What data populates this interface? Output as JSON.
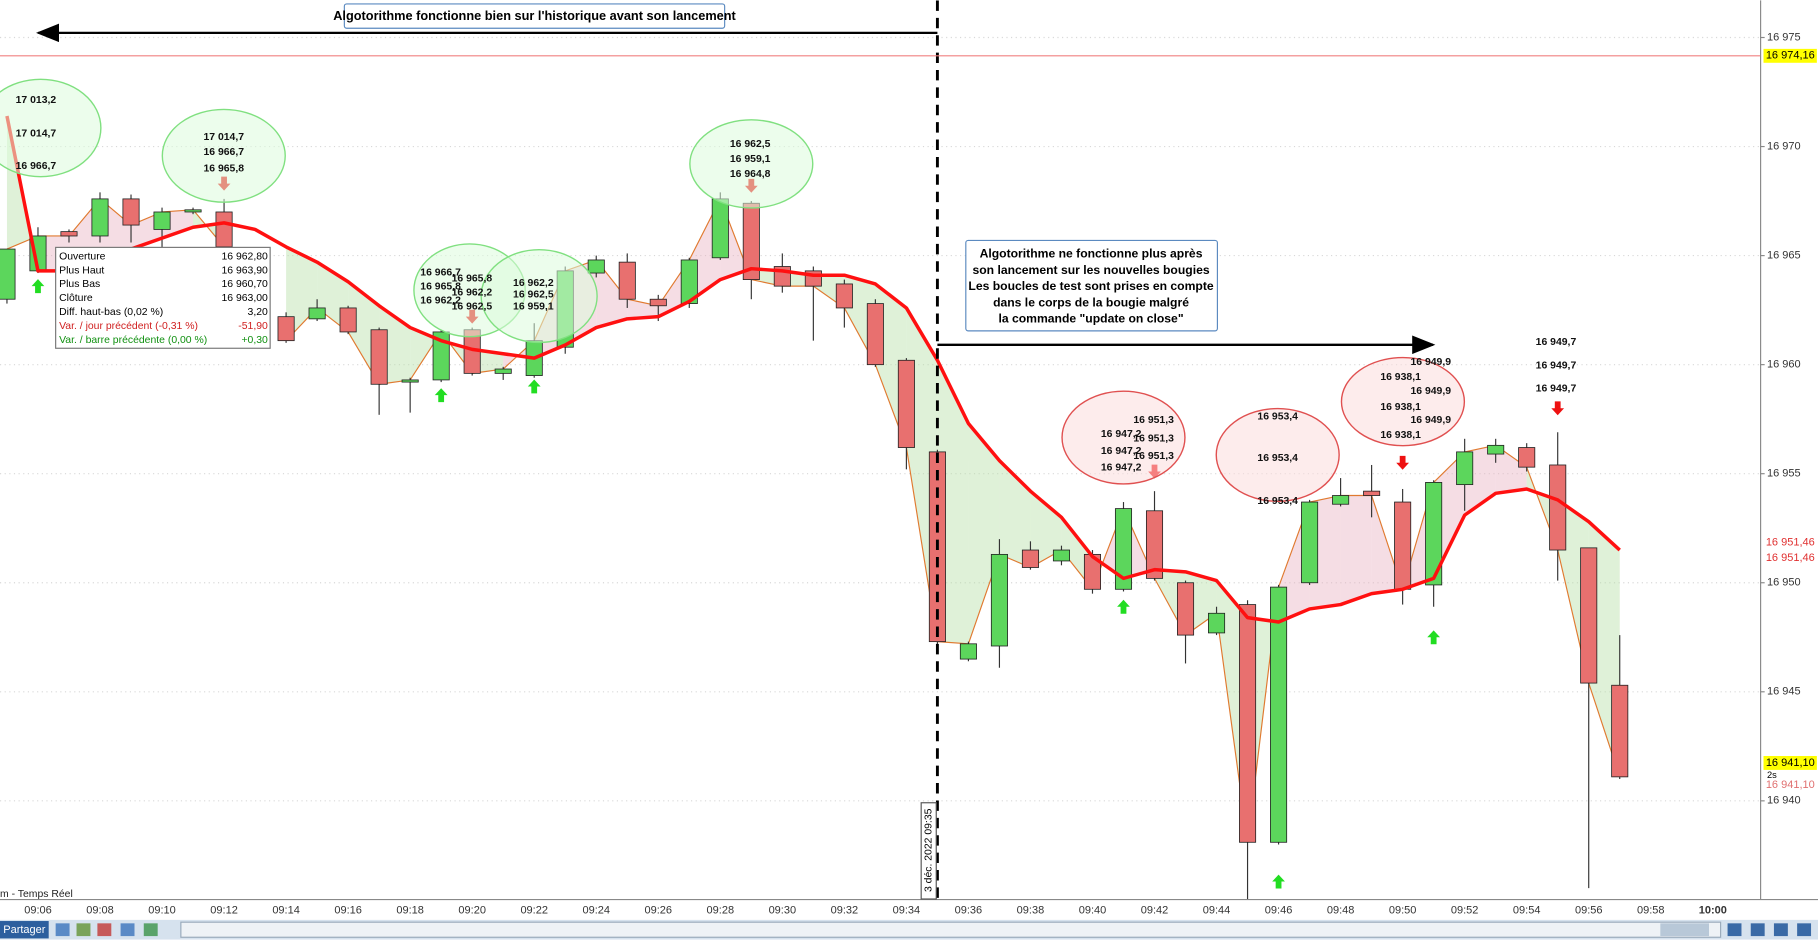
{
  "chart_data": {
    "type": "candlestick",
    "x": [
      "09:05",
      "09:06",
      "09:07",
      "09:08",
      "09:09",
      "09:10",
      "09:11",
      "09:12",
      "09:13",
      "09:14",
      "09:15",
      "09:16",
      "09:17",
      "09:18",
      "09:19",
      "09:20",
      "09:21",
      "09:22",
      "09:23",
      "09:24",
      "09:25",
      "09:26",
      "09:27",
      "09:28",
      "09:29",
      "09:30",
      "09:31",
      "09:32",
      "09:33",
      "09:34",
      "09:35",
      "09:36",
      "09:37",
      "09:38",
      "09:39",
      "09:40",
      "09:41",
      "09:42",
      "09:43",
      "09:44",
      "09:45",
      "09:46",
      "09:47",
      "09:48",
      "09:49",
      "09:50",
      "09:51",
      "09:52",
      "09:53",
      "09:54",
      "09:55",
      "09:56",
      "09:57"
    ],
    "open": [
      16963.0,
      16964.3,
      16966.1,
      16965.9,
      16967.6,
      16966.2,
      16967.0,
      16967.0,
      null,
      16962.2,
      16962.1,
      16962.6,
      16961.6,
      16959.2,
      16959.3,
      16961.6,
      16959.6,
      16959.5,
      16960.8,
      16964.2,
      16964.7,
      16963.0,
      16962.8,
      16964.9,
      16967.4,
      16964.5,
      16964.3,
      16963.7,
      16962.8,
      16960.2,
      16956.0,
      16946.5,
      16947.1,
      16951.5,
      16951.0,
      16951.3,
      16949.7,
      16953.3,
      16950.0,
      16947.7,
      16949.0,
      16938.1,
      16950.0,
      16953.6,
      16954.2,
      16953.7,
      16949.9,
      16954.5,
      16955.9,
      16956.2,
      16955.4,
      16951.6,
      16945.3
    ],
    "high": [
      16965.3,
      16966.3,
      16966.2,
      16967.9,
      16967.8,
      16967.2,
      16967.2,
      16967.6,
      null,
      16962.4,
      16963.0,
      16962.7,
      16961.7,
      16959.4,
      16961.6,
      16961.7,
      16959.9,
      16961.9,
      16964.5,
      16965.0,
      16965.1,
      16963.2,
      16964.9,
      16967.9,
      16967.5,
      16965.1,
      16964.5,
      16963.9,
      16963.0,
      16960.3,
      16956.1,
      16947.3,
      16952.0,
      16951.9,
      16951.7,
      16951.5,
      16953.7,
      16954.2,
      16950.1,
      16948.9,
      16949.2,
      16949.9,
      16953.8,
      16954.8,
      16955.4,
      16954.3,
      16954.7,
      16956.6,
      16956.6,
      16956.4,
      16956.9,
      16951.6,
      16947.6
    ],
    "low": [
      16962.8,
      16964.2,
      16965.6,
      16965.6,
      16965.6,
      16965.2,
      16966.9,
      16965.2,
      null,
      16961.0,
      16962.0,
      16961.4,
      16957.7,
      16957.8,
      16959.2,
      16959.5,
      16959.3,
      16959.4,
      16960.5,
      16964.0,
      16962.6,
      16962.0,
      16962.6,
      16964.8,
      16963.0,
      16963.3,
      16961.1,
      16961.7,
      16959.9,
      16955.2,
      16947.0,
      16946.4,
      16946.1,
      16950.6,
      16950.8,
      16949.5,
      16949.6,
      16950.1,
      16946.3,
      16947.6,
      16935.5,
      16938.0,
      16949.9,
      16953.5,
      16953.0,
      16949.0,
      16948.9,
      16953.3,
      16955.5,
      16955.1,
      16950.1,
      16936.0,
      16941.0
    ],
    "close": [
      16965.3,
      16965.9,
      16965.9,
      16967.6,
      16966.4,
      16967.0,
      16967.1,
      16965.4,
      null,
      16961.1,
      16962.6,
      16961.5,
      16959.1,
      16959.3,
      16961.5,
      16959.6,
      16959.8,
      16961.1,
      16964.3,
      16964.8,
      16963.0,
      16962.7,
      16964.8,
      16967.6,
      16963.9,
      16963.6,
      16963.6,
      16962.6,
      16960.0,
      16956.2,
      16947.3,
      16947.2,
      16951.3,
      16950.7,
      16951.5,
      16949.7,
      16953.4,
      16950.2,
      16947.6,
      16948.6,
      16938.1,
      16949.8,
      16953.7,
      16954.0,
      16954.0,
      16949.7,
      16954.6,
      16956.0,
      16956.3,
      16955.3,
      16951.5,
      16945.4,
      16941.1
    ],
    "up_color": "#5cd65c",
    "down_color": "#e8706f",
    "close_line_color": "#e07a30",
    "average": {
      "color": "#ff1010",
      "values": [
        16971.4,
        16964.3,
        16964.3,
        16964.7,
        16965.3,
        16965.8,
        16966.3,
        16966.5,
        16966.2,
        16965.4,
        16964.7,
        16963.8,
        16962.7,
        16961.7,
        16961.1,
        16960.7,
        16960.5,
        16960.3,
        16960.9,
        16961.7,
        16962.1,
        16962.2,
        16962.9,
        16963.9,
        16964.4,
        16964.3,
        16964.1,
        16964.1,
        16963.7,
        16962.6,
        16960.2,
        16957.3,
        16955.6,
        16954.2,
        16953.0,
        16951.2,
        16950.2,
        16950.6,
        16950.5,
        16950.1,
        16948.4,
        16948.2,
        16948.8,
        16949.0,
        16949.5,
        16949.7,
        16950.2,
        16953.1,
        16954.1,
        16954.3,
        16953.8,
        16952.8,
        16951.5
      ]
    },
    "fill_above_color": "#e8b4c4",
    "fill_below_color": "#b8e0a8",
    "signals_up": {
      "color": "#22dd22",
      "x": [
        "09:06",
        "09:19",
        "09:22",
        "09:41",
        "09:46",
        "09:51"
      ],
      "values": [
        16963.6,
        16958.6,
        16959.0,
        16948.9,
        16936.3,
        16947.5
      ]
    },
    "signals_down": {
      "color": "#ee1111",
      "x": [
        "09:12",
        "09:20",
        "09:29",
        "09:42",
        "09:50",
        "09:55"
      ],
      "values": [
        16968.3,
        16962.2,
        16968.2,
        16955.1,
        16955.5,
        16958.0
      ]
    },
    "ylim": [
      16935.5,
      16976.7
    ],
    "yticks": [
      {
        "value": 16940,
        "label": "16 940"
      },
      {
        "value": 16945,
        "label": "16 945"
      },
      {
        "value": 16950,
        "label": "16 950"
      },
      {
        "value": 16955,
        "label": "16 955"
      },
      {
        "value": 16960,
        "label": "16 960"
      },
      {
        "value": 16965,
        "label": "16 965"
      },
      {
        "value": 16970,
        "label": "16 970"
      },
      {
        "value": 16975,
        "label": "16 975"
      }
    ],
    "xticks": [
      "09:06",
      "09:08",
      "09:10",
      "09:12",
      "09:14",
      "09:16",
      "09:18",
      "09:20",
      "09:22",
      "09:24",
      "09:26",
      "09:28",
      "09:30",
      "09:32",
      "09:34",
      "09:36",
      "09:38",
      "09:40",
      "09:42",
      "09:44",
      "09:46",
      "09:48",
      "09:50",
      "09:52",
      "09:54",
      "09:56",
      "09:58",
      "10:00"
    ],
    "grid": true,
    "price_tags": [
      {
        "value": 16974.16,
        "label": "16 974,16",
        "background": "#ffff00",
        "color": "#000000",
        "line": true
      },
      {
        "value": 16951.46,
        "label": "16 951,46",
        "background": "#ffffff",
        "color": "#e03030"
      },
      {
        "value": 16951.46,
        "label": "16 951,46",
        "background": "#ffffff",
        "color": "#e03030"
      },
      {
        "value": 16941.1,
        "label": "16 941,10",
        "background": "#ffff00",
        "color": "#000000"
      },
      {
        "value": 16941.1,
        "label": "16 941,10",
        "background": "#ffffff",
        "color": "#e07070"
      }
    ],
    "countdown": "2s",
    "launch_marker": {
      "x": "09:35",
      "label": "3 déc. 2022 09:35"
    }
  },
  "bubbles": [
    {
      "fill": "#dcfcdc",
      "stroke": "#80e080",
      "lines": [
        "17 013,2",
        "17 014,7",
        "16 966,7"
      ]
    },
    {
      "fill": "#dcfcdc",
      "stroke": "#80e080",
      "lines": [
        "17 014,7",
        "16 966,7",
        "16 965,8"
      ]
    },
    {
      "fill": "#dcfcdc",
      "stroke": "#80e080",
      "lines": [
        "16 966,7",
        "16 965,8",
        "16 962,2"
      ]
    },
    {
      "fill": "#dcfcdc",
      "stroke": "#80e080",
      "lines": [
        "16 962,2",
        "16 962,5",
        "16 959,1"
      ]
    },
    {
      "lines": [
        "16 965,8",
        "16 962,2",
        "16 962,5"
      ]
    },
    {
      "fill": "#dcfcdc",
      "stroke": "#80e080",
      "lines": [
        "16 962,5",
        "16 959,1",
        "16 964,8"
      ]
    },
    {
      "fill": "#fcdcdc",
      "stroke": "#e05050",
      "lines": [
        "16 951,3",
        "16 947,2",
        "16 951,3",
        "16 947,2",
        "16 951,3",
        "16 947,2"
      ]
    },
    {
      "fill": "#fcdcdc",
      "stroke": "#e05050",
      "lines": [
        "16 953,4",
        "16 953,4",
        "16 953,4"
      ]
    },
    {
      "fill": "#fcdcdc",
      "stroke": "#e05050",
      "lines": [
        "16 949,9",
        "16 938,1",
        "16 949,9",
        "16 938,1",
        "16 949,9",
        "16 938,1"
      ]
    },
    {
      "lines": [
        "16 949,7",
        "16 949,7",
        "16 949,7"
      ]
    }
  ],
  "notes": {
    "before": "Algotorithme fonctionne bien sur l'historique avant son lancement",
    "after": [
      "Algotorithme ne fonctionne plus après",
      "son lancement sur les nouvelles bougies",
      "Les boucles de test sont prises en compte",
      "dans le corps de la bougie malgré",
      "la commande \"update on close\""
    ]
  },
  "tooltip": {
    "rows": [
      {
        "label": "Ouverture",
        "value": "16 962,80",
        "color": "#000000"
      },
      {
        "label": "Plus Haut",
        "value": "16 963,90",
        "color": "#000000"
      },
      {
        "label": "Plus Bas",
        "value": "16 960,70",
        "color": "#000000"
      },
      {
        "label": "Clôture",
        "value": "16 963,00",
        "color": "#000000"
      },
      {
        "label": "Diff. haut-bas (0,02 %)",
        "value": "3,20",
        "color": "#000000"
      },
      {
        "label": "Var. / jour précédent (-0,31 %)",
        "value": "-51,90",
        "color": "#d02020"
      },
      {
        "label": "Var. / barre précédente (0,00 %)",
        "value": "+0,30",
        "color": "#109010"
      }
    ]
  },
  "status": "m - Temps Réel",
  "toolbar": {
    "share": "Partager"
  }
}
